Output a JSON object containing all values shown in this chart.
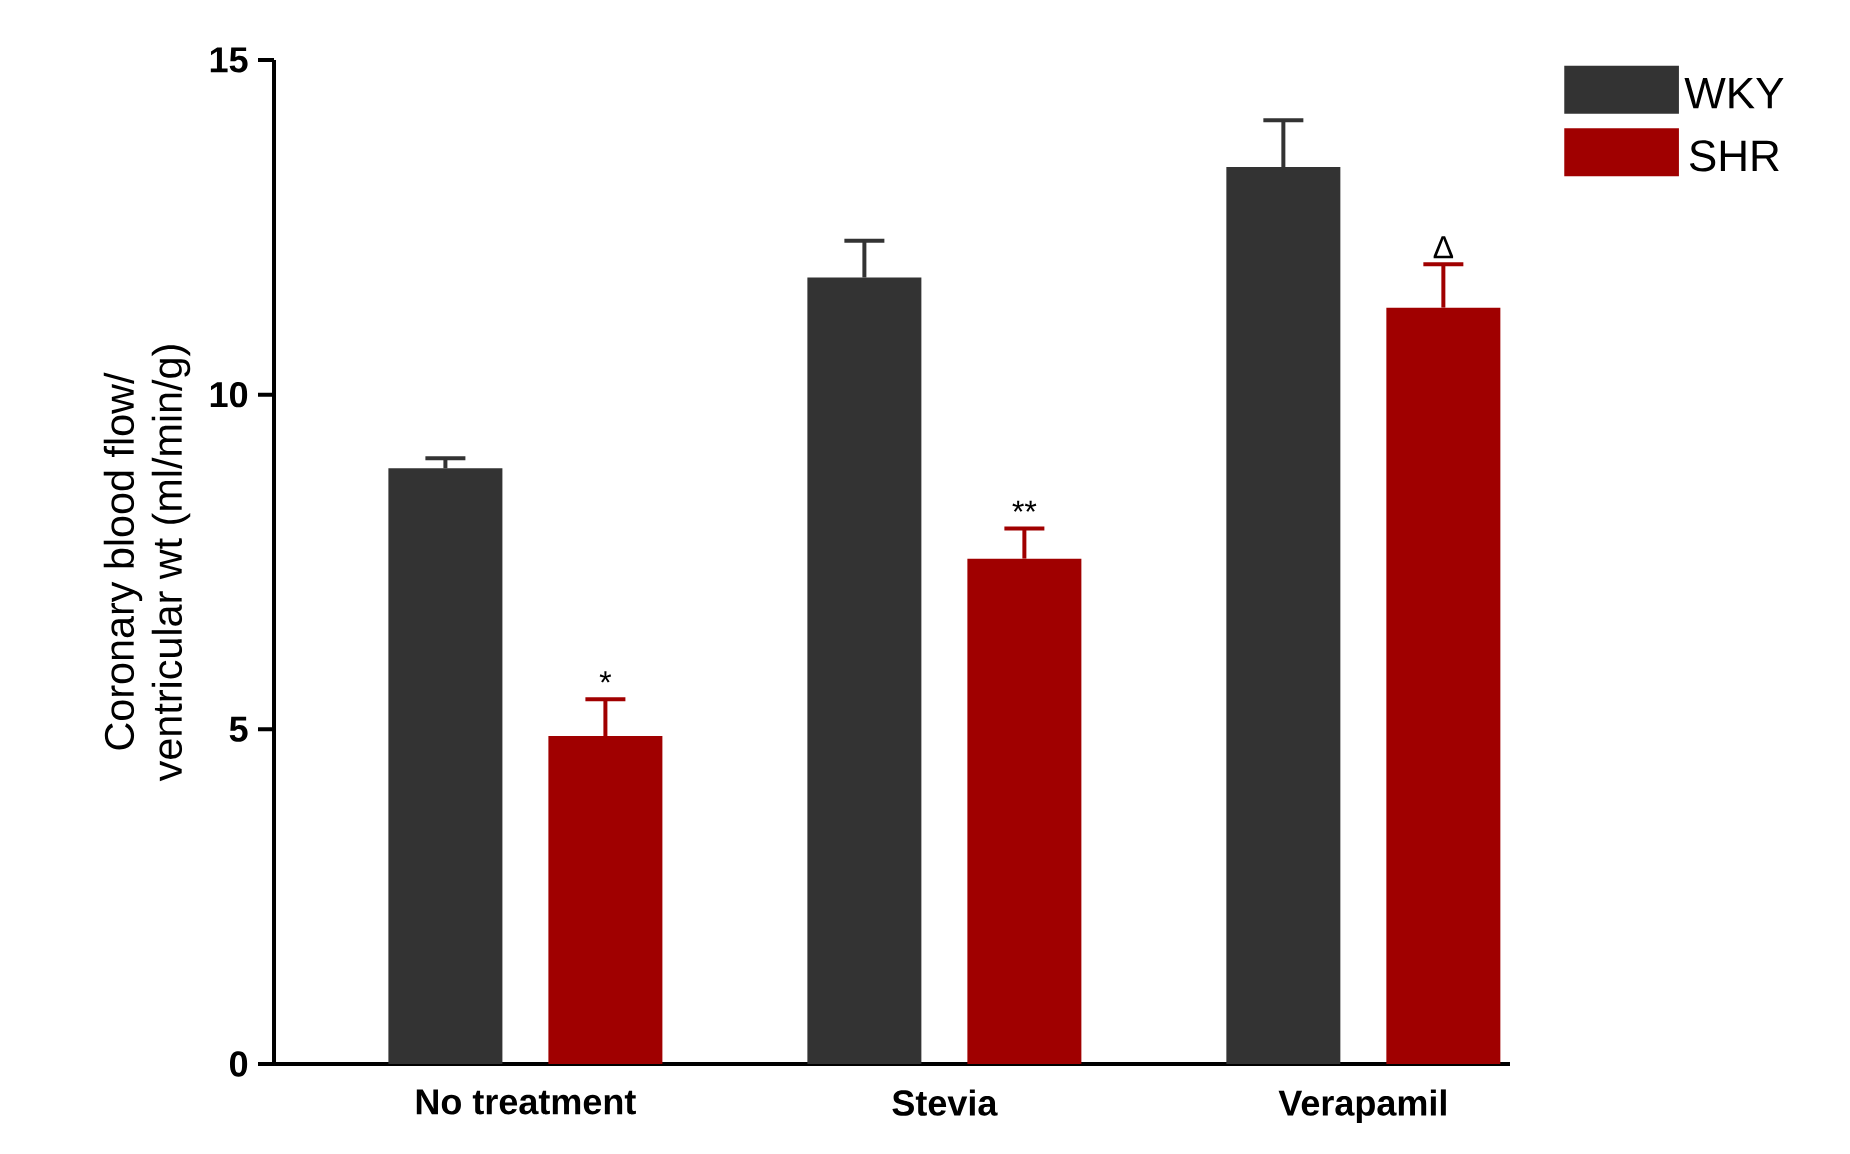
{
  "chart_data": {
    "type": "bar",
    "ylabel": "Coronary blood flow/\nventricular wt (ml/min/g)",
    "categories": [
      "No treatment",
      "Stevia",
      "Verapamil"
    ],
    "series": [
      {
        "name": "WKY",
        "color": "#333333",
        "values": [
          8.9,
          11.75,
          13.4
        ],
        "errors": [
          [
            8.9,
            9.05
          ],
          [
            11.75,
            12.3
          ],
          [
            13.4,
            14.1
          ]
        ]
      },
      {
        "name": "SHR",
        "color": "#a00000",
        "values": [
          4.9,
          7.55,
          11.3
        ],
        "errors": [
          [
            4.9,
            5.45
          ],
          [
            7.55,
            8.0
          ],
          [
            11.3,
            11.95
          ]
        ]
      }
    ],
    "annotations": [
      "*",
      "**",
      "Δ"
    ],
    "ylim": [
      0,
      15
    ],
    "yticks": [
      0,
      5,
      10,
      15
    ],
    "grid": false,
    "legend": "top right"
  }
}
